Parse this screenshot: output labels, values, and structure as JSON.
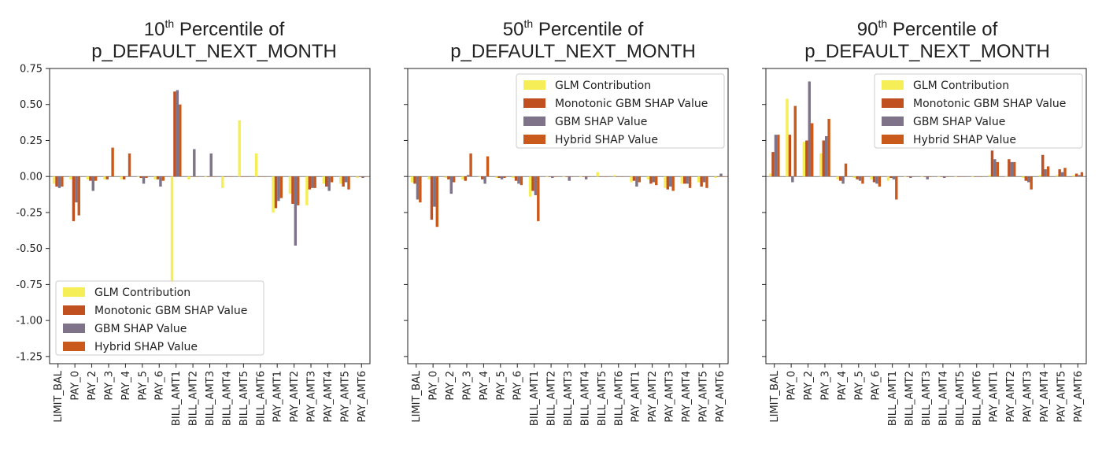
{
  "chart_data": [
    {
      "type": "bar",
      "title_pct": "10",
      "title_sup": "th",
      "title_rest": " Percentile of",
      "title_line2": "p_DEFAULT_NEXT_MONTH",
      "categories": [
        "LIMIT_BAL",
        "PAY_0",
        "PAY_2",
        "PAY_3",
        "PAY_4",
        "PAY_5",
        "PAY_6",
        "BILL_AMT1",
        "BILL_AMT2",
        "BILL_AMT3",
        "BILL_AMT4",
        "BILL_AMT5",
        "BILL_AMT6",
        "PAY_AMT1",
        "PAY_AMT2",
        "PAY_AMT3",
        "PAY_AMT4",
        "PAY_AMT5",
        "PAY_AMT6"
      ],
      "ylim": [
        -1.3,
        0.75
      ],
      "yticks": [
        "0.75",
        "0.50",
        "0.25",
        "0.00",
        "-0.25",
        "-0.50",
        "-0.75",
        "-1.00",
        "-1.25"
      ],
      "legend_position": "lower-left",
      "series": [
        {
          "name": "GLM Contribution",
          "values": [
            -0.05,
            -0.02,
            -0.02,
            -0.02,
            -0.02,
            0.0,
            -0.02,
            -0.75,
            -0.02,
            0.0,
            -0.08,
            0.39,
            0.16,
            -0.25,
            -0.12,
            -0.2,
            -0.05,
            -0.05,
            -0.01
          ]
        },
        {
          "name": "Monotonic GBM SHAP Value",
          "values": [
            -0.07,
            -0.31,
            -0.03,
            -0.02,
            -0.02,
            -0.01,
            -0.02,
            0.59,
            0.0,
            0.0,
            0.0,
            0.0,
            0.0,
            -0.22,
            -0.19,
            -0.09,
            -0.07,
            -0.07,
            0.0
          ]
        },
        {
          "name": "GBM SHAP Value",
          "values": [
            -0.08,
            -0.18,
            -0.1,
            0.0,
            0.0,
            -0.05,
            -0.07,
            0.6,
            0.19,
            0.16,
            0.0,
            0.0,
            0.0,
            -0.17,
            -0.48,
            -0.08,
            -0.1,
            -0.04,
            -0.01
          ]
        },
        {
          "name": "Hybrid SHAP Value",
          "values": [
            -0.07,
            -0.27,
            -0.03,
            0.2,
            0.16,
            -0.01,
            -0.03,
            0.5,
            0.0,
            0.0,
            0.0,
            0.0,
            0.0,
            -0.15,
            -0.2,
            -0.08,
            -0.04,
            -0.09,
            0.0
          ]
        }
      ]
    },
    {
      "type": "bar",
      "title_pct": "50",
      "title_sup": "th",
      "title_rest": " Percentile of",
      "title_line2": "p_DEFAULT_NEXT_MONTH",
      "categories": [
        "LIMIT_BAL",
        "PAY_0",
        "PAY_2",
        "PAY_3",
        "PAY_4",
        "PAY_5",
        "PAY_6",
        "BILL_AMT1",
        "BILL_AMT2",
        "BILL_AMT3",
        "BILL_AMT4",
        "BILL_AMT5",
        "BILL_AMT6",
        "PAY_AMT1",
        "PAY_AMT2",
        "PAY_AMT3",
        "PAY_AMT4",
        "PAY_AMT5",
        "PAY_AMT6"
      ],
      "ylim": [
        -1.3,
        0.75
      ],
      "legend_position": "upper-right",
      "series": [
        {
          "name": "GLM Contribution",
          "values": [
            -0.04,
            -0.02,
            -0.01,
            -0.02,
            0.0,
            -0.01,
            -0.01,
            -0.14,
            0.0,
            0.0,
            0.0,
            0.03,
            0.01,
            -0.04,
            -0.02,
            -0.08,
            -0.05,
            -0.04,
            -0.01
          ]
        },
        {
          "name": "Monotonic GBM SHAP Value",
          "values": [
            -0.05,
            -0.3,
            -0.02,
            -0.03,
            -0.02,
            -0.01,
            -0.03,
            -0.1,
            0.0,
            0.0,
            0.0,
            0.0,
            0.0,
            -0.03,
            -0.05,
            -0.09,
            -0.05,
            -0.07,
            0.0
          ]
        },
        {
          "name": "GBM SHAP Value",
          "values": [
            -0.16,
            -0.21,
            -0.12,
            0.01,
            -0.05,
            -0.02,
            -0.05,
            -0.13,
            -0.01,
            -0.03,
            -0.02,
            0.0,
            0.0,
            -0.07,
            -0.04,
            -0.07,
            -0.05,
            -0.04,
            0.02
          ]
        },
        {
          "name": "Hybrid SHAP Value",
          "values": [
            -0.18,
            -0.35,
            -0.04,
            0.16,
            0.14,
            -0.01,
            -0.06,
            -0.31,
            0.0,
            0.0,
            0.0,
            0.0,
            0.0,
            -0.04,
            -0.06,
            -0.1,
            -0.08,
            -0.08,
            0.0
          ]
        }
      ]
    },
    {
      "type": "bar",
      "title_pct": "90",
      "title_sup": "th",
      "title_rest": " Percentile of",
      "title_line2": "p_DEFAULT_NEXT_MONTH",
      "categories": [
        "LIMIT_BAL",
        "PAY_0",
        "PAY_2",
        "PAY_3",
        "PAY_4",
        "PAY_5",
        "PAY_6",
        "BILL_AMT1",
        "BILL_AMT2",
        "BILL_AMT3",
        "BILL_AMT4",
        "BILL_AMT5",
        "BILL_AMT6",
        "PAY_AMT1",
        "PAY_AMT2",
        "PAY_AMT3",
        "PAY_AMT4",
        "PAY_AMT5",
        "PAY_AMT6"
      ],
      "ylim": [
        -1.3,
        0.75
      ],
      "legend_position": "upper-right",
      "series": [
        {
          "name": "GLM Contribution",
          "values": [
            0.02,
            0.54,
            0.24,
            0.16,
            -0.02,
            -0.01,
            -0.02,
            -0.03,
            0.0,
            0.0,
            0.0,
            0.0,
            0.0,
            0.01,
            0.0,
            -0.01,
            0.01,
            0.01,
            0.01
          ]
        },
        {
          "name": "Monotonic GBM SHAP Value",
          "values": [
            0.17,
            0.29,
            0.25,
            0.25,
            -0.03,
            -0.02,
            -0.04,
            -0.01,
            0.0,
            0.0,
            0.0,
            0.0,
            0.0,
            0.18,
            0.12,
            -0.03,
            0.15,
            0.05,
            0.02
          ]
        },
        {
          "name": "GBM SHAP Value",
          "values": [
            0.29,
            -0.04,
            0.66,
            0.28,
            -0.05,
            -0.03,
            -0.05,
            -0.02,
            -0.01,
            -0.02,
            -0.01,
            0.0,
            0.0,
            0.12,
            0.1,
            -0.04,
            0.05,
            0.03,
            0.01
          ]
        },
        {
          "name": "Hybrid SHAP Value",
          "values": [
            0.29,
            0.49,
            0.37,
            0.4,
            0.09,
            -0.05,
            -0.07,
            -0.16,
            0.0,
            0.0,
            0.0,
            0.0,
            0.0,
            0.1,
            0.1,
            -0.09,
            0.07,
            0.06,
            0.03
          ]
        }
      ]
    }
  ],
  "colors": {
    "glm": "#F6EE56",
    "monotonic": "#C0501F",
    "gbm": "#7E7388",
    "hybrid": "#C95A1B",
    "axis": "#222222"
  }
}
